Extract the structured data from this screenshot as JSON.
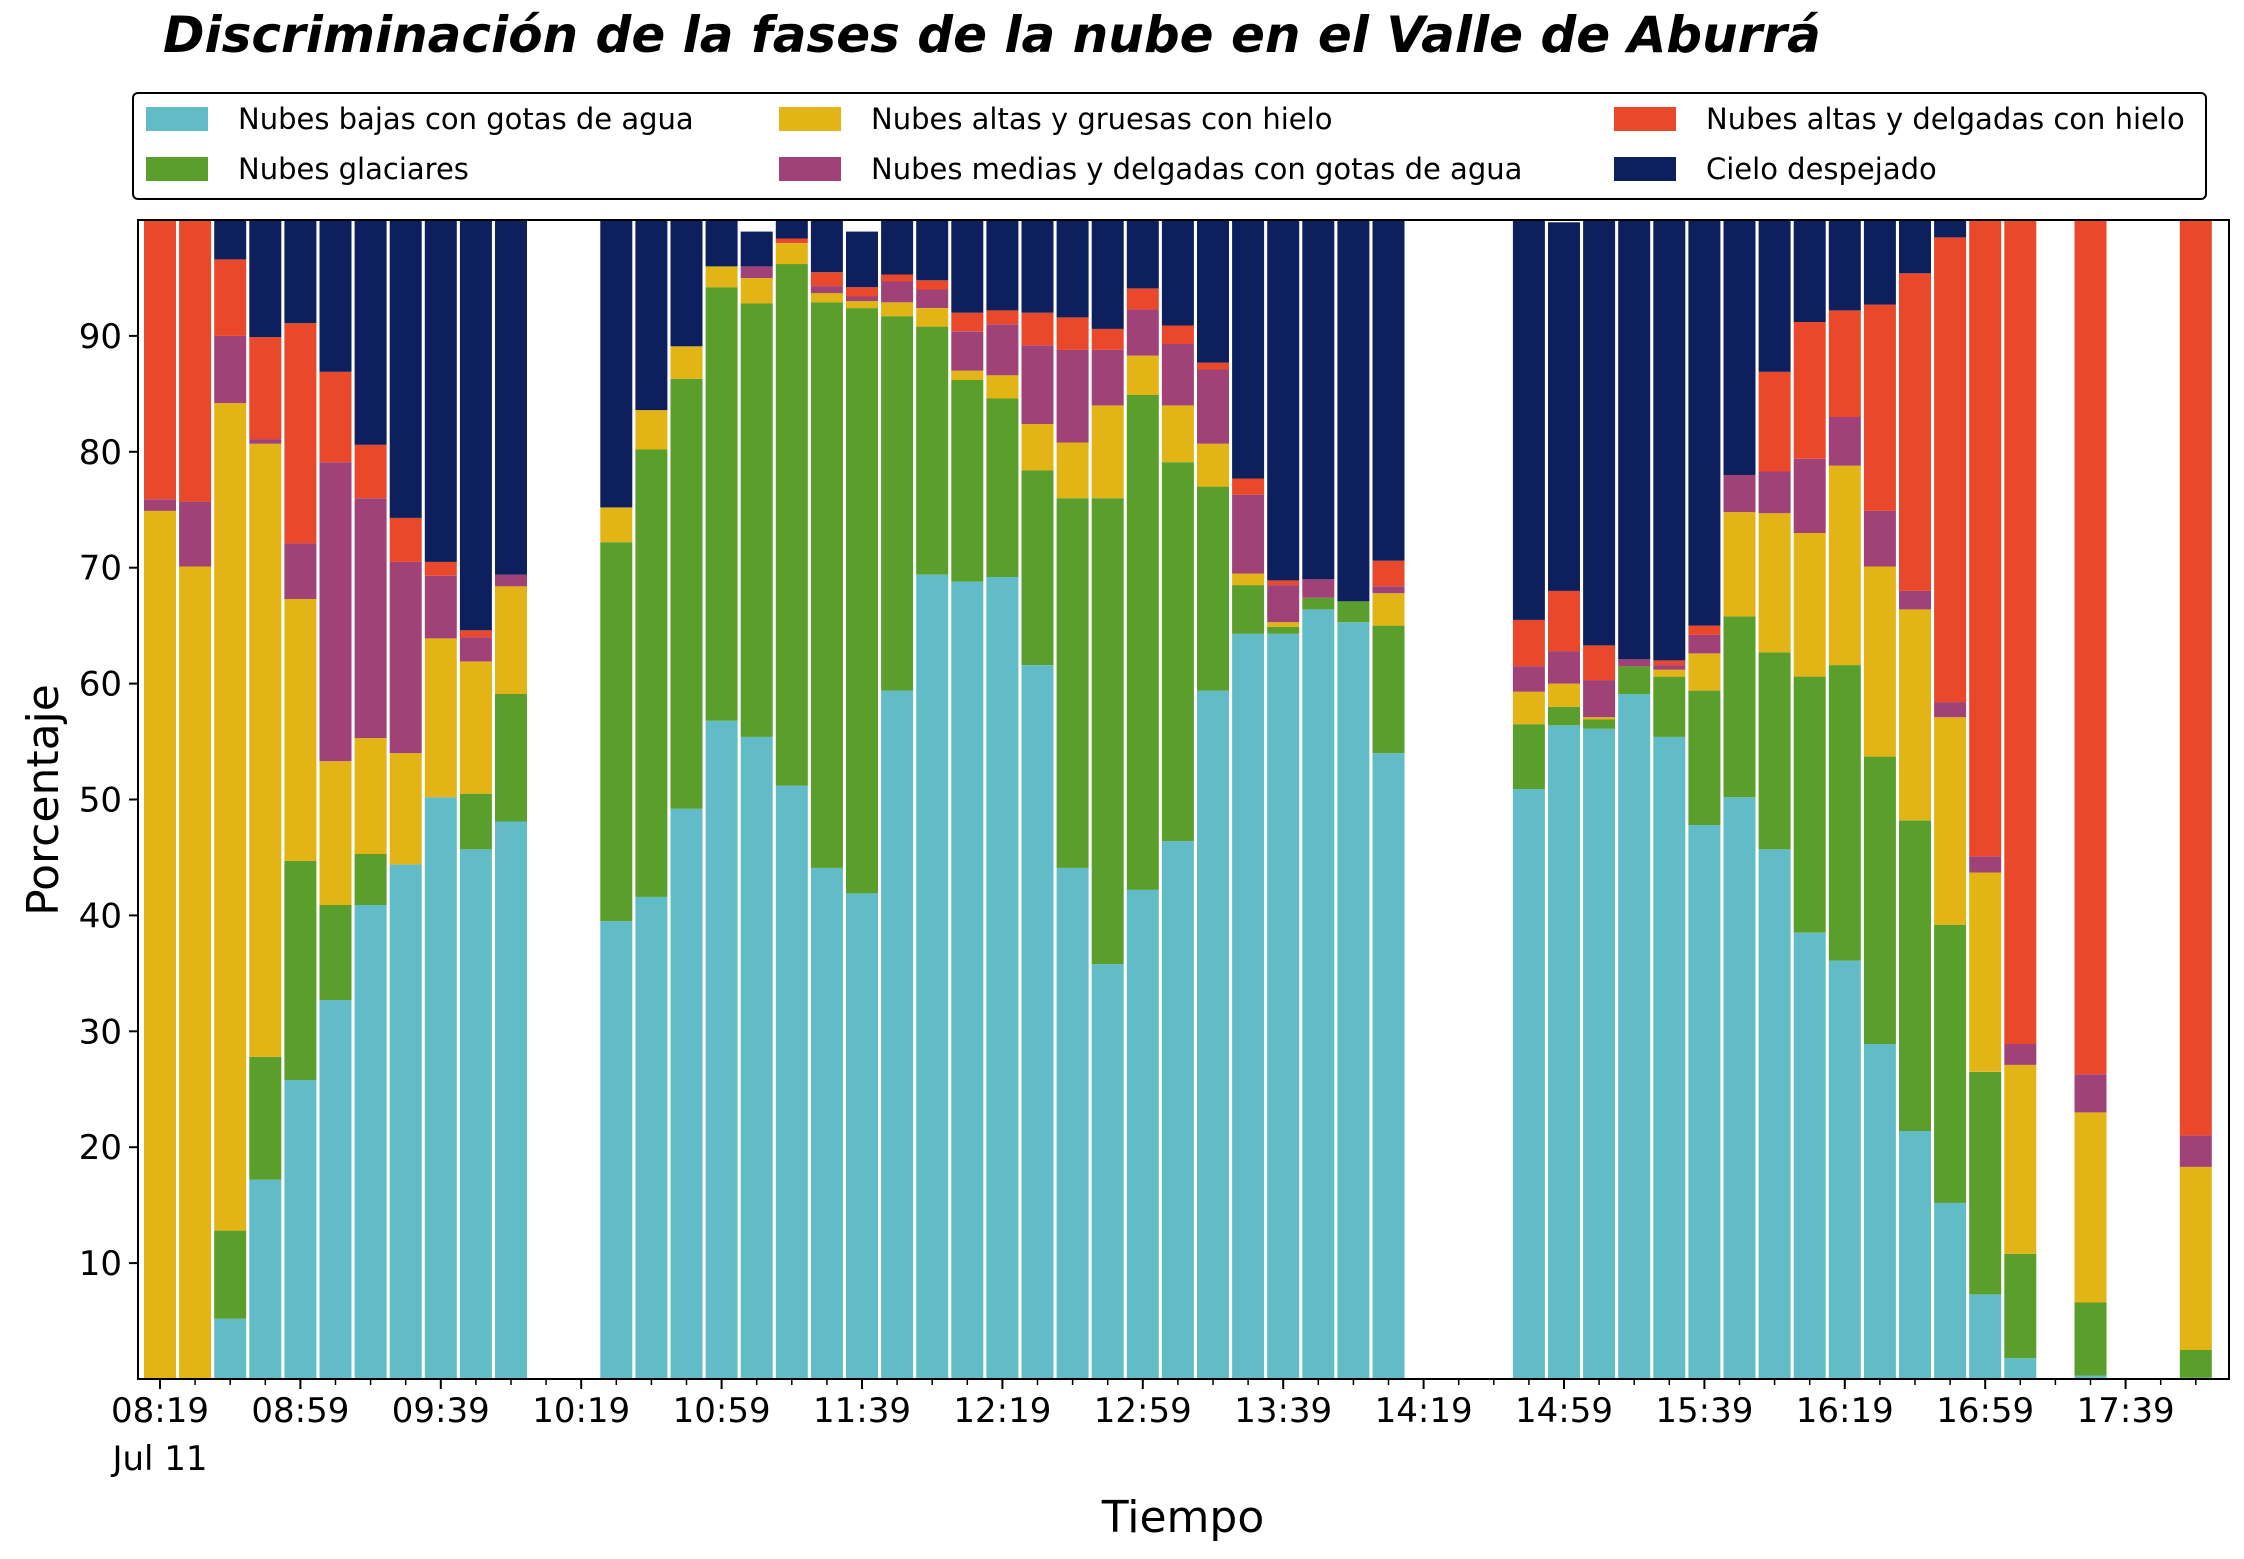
{
  "chart_data": {
    "type": "bar",
    "stacked": true,
    "title": "Discriminación de la fases de la nube en el Valle de Aburrá",
    "xlabel": "Tiempo",
    "ylabel": "Porcentaje",
    "ylim": [
      0,
      100
    ],
    "yticks": [
      10,
      20,
      30,
      40,
      50,
      60,
      70,
      80,
      90
    ],
    "xticks": [
      {
        "slot": 0,
        "label": "08:19",
        "sublabel": "Jul 11"
      },
      {
        "slot": 4,
        "label": "08:59"
      },
      {
        "slot": 8,
        "label": "09:39"
      },
      {
        "slot": 12,
        "label": "10:19"
      },
      {
        "slot": 16,
        "label": "10:59"
      },
      {
        "slot": 20,
        "label": "11:39"
      },
      {
        "slot": 24,
        "label": "12:19"
      },
      {
        "slot": 28,
        "label": "12:59"
      },
      {
        "slot": 32,
        "label": "13:39"
      },
      {
        "slot": 36,
        "label": "14:19"
      },
      {
        "slot": 40,
        "label": "14:59"
      },
      {
        "slot": 44,
        "label": "15:39"
      },
      {
        "slot": 48,
        "label": "16:19"
      },
      {
        "slot": 52,
        "label": "16:59"
      },
      {
        "slot": 56,
        "label": "17:39"
      }
    ],
    "grid": false,
    "legend_position": "top",
    "slots": 59,
    "slot_interval_minutes": 10,
    "bar_slots": [
      0,
      1,
      2,
      3,
      4,
      5,
      6,
      7,
      8,
      9,
      10,
      13,
      14,
      15,
      16,
      17,
      18,
      19,
      20,
      21,
      22,
      23,
      24,
      25,
      26,
      27,
      28,
      29,
      30,
      31,
      32,
      33,
      34,
      35,
      39,
      40,
      41,
      42,
      43,
      44,
      45,
      46,
      47,
      48,
      49,
      50,
      51,
      52,
      53,
      55,
      58
    ],
    "series": [
      {
        "name": "Nubes bajas con gotas de agua",
        "color": "#62bcc8",
        "values": [
          0,
          0,
          5.2,
          17.2,
          25.8,
          32.7,
          40.9,
          44.4,
          50.2,
          45.7,
          48.1,
          39.5,
          41.6,
          49.2,
          56.8,
          55.4,
          51.2,
          44.1,
          41.9,
          59.4,
          69.4,
          68.8,
          69.2,
          61.6,
          44.1,
          35.8,
          42.2,
          46.4,
          59.4,
          64.3,
          64.3,
          66.4,
          65.3,
          54.0,
          50.9,
          56.4,
          56.1,
          59.1,
          55.4,
          47.8,
          50.2,
          45.7,
          38.5,
          36.1,
          28.9,
          21.4,
          15.2,
          7.3,
          1.8,
          0.3,
          0.1
        ]
      },
      {
        "name": "Nubes glaciares",
        "color": "#5a9e2b",
        "values": [
          0,
          0,
          7.6,
          10.6,
          18.9,
          8.2,
          4.4,
          0,
          0,
          4.8,
          11.0,
          32.7,
          38.6,
          37.1,
          37.4,
          37.4,
          45.0,
          48.8,
          50.5,
          32.3,
          21.4,
          17.4,
          15.4,
          16.8,
          31.9,
          40.2,
          42.7,
          32.7,
          17.6,
          4.2,
          0.6,
          1.0,
          1.8,
          11.0,
          5.6,
          1.6,
          0.8,
          2.4,
          5.2,
          11.6,
          15.6,
          17.0,
          22.1,
          25.5,
          24.8,
          26.8,
          24.0,
          19.2,
          9.0,
          6.3,
          2.4
        ]
      },
      {
        "name": "Nubes altas y gruesas con hielo",
        "color": "#e2b416",
        "values": [
          74.9,
          70.1,
          71.4,
          52.9,
          22.6,
          12.4,
          10.0,
          9.6,
          13.7,
          11.4,
          9.3,
          3.0,
          3.4,
          2.8,
          1.8,
          2.2,
          1.8,
          0.8,
          0.6,
          1.2,
          1.6,
          0.8,
          2.0,
          4.0,
          4.8,
          8.0,
          3.4,
          4.9,
          3.7,
          1.0,
          0.4,
          0,
          0,
          2.8,
          2.8,
          2.0,
          0.2,
          0,
          0.6,
          3.2,
          9.0,
          12.0,
          12.4,
          17.2,
          16.4,
          18.2,
          17.9,
          17.2,
          16.3,
          16.4,
          15.8
        ]
      },
      {
        "name": "Nubes medias y delgadas con gotas de agua",
        "color": "#a04277",
        "values": [
          1.0,
          5.6,
          5.8,
          0.4,
          4.8,
          25.8,
          20.7,
          16.5,
          5.4,
          2.1,
          1.0,
          0,
          0,
          0,
          0,
          1.0,
          0,
          0.6,
          0.4,
          1.8,
          1.6,
          3.4,
          4.4,
          6.8,
          8.0,
          4.8,
          4.0,
          5.3,
          6.4,
          6.8,
          3.2,
          1.6,
          0,
          0.6,
          2.2,
          2.8,
          3.2,
          0.6,
          0.4,
          1.6,
          3.2,
          3.6,
          6.4,
          4.2,
          4.8,
          1.6,
          1.3,
          1.4,
          1.8,
          3.3,
          2.7
        ]
      },
      {
        "name": "Nubes altas y delgadas con hielo",
        "color": "#e9482a",
        "values": [
          24.1,
          24.3,
          6.6,
          8.8,
          19.0,
          7.8,
          4.6,
          3.8,
          1.2,
          0.6,
          0,
          0,
          0,
          0,
          0,
          0,
          0.4,
          1.2,
          0.8,
          0.6,
          0.8,
          1.6,
          1.2,
          2.8,
          2.8,
          1.8,
          1.8,
          1.6,
          0.6,
          1.4,
          0.4,
          0,
          0,
          2.2,
          4.0,
          5.2,
          3.0,
          0,
          0.4,
          0.8,
          0,
          8.6,
          11.8,
          9.2,
          17.8,
          27.4,
          40.1,
          54.9,
          71.1,
          73.7,
          79.0
        ]
      },
      {
        "name": "Cielo despejado",
        "color": "#0d1f5c",
        "values": [
          0,
          0,
          3.4,
          10.1,
          8.9,
          13.1,
          19.4,
          25.7,
          29.5,
          35.4,
          30.6,
          24.8,
          16.4,
          10.9,
          4.0,
          3.0,
          1.6,
          4.5,
          4.8,
          4.7,
          5.2,
          8.0,
          7.8,
          8.0,
          8.4,
          9.4,
          5.9,
          9.1,
          12.3,
          22.3,
          31.1,
          31.0,
          32.9,
          29.4,
          34.5,
          31.8,
          36.7,
          37.9,
          38.0,
          35.0,
          22.0,
          13.1,
          8.8,
          7.8,
          7.3,
          4.6,
          1.5,
          0,
          0,
          0,
          0
        ]
      }
    ]
  }
}
